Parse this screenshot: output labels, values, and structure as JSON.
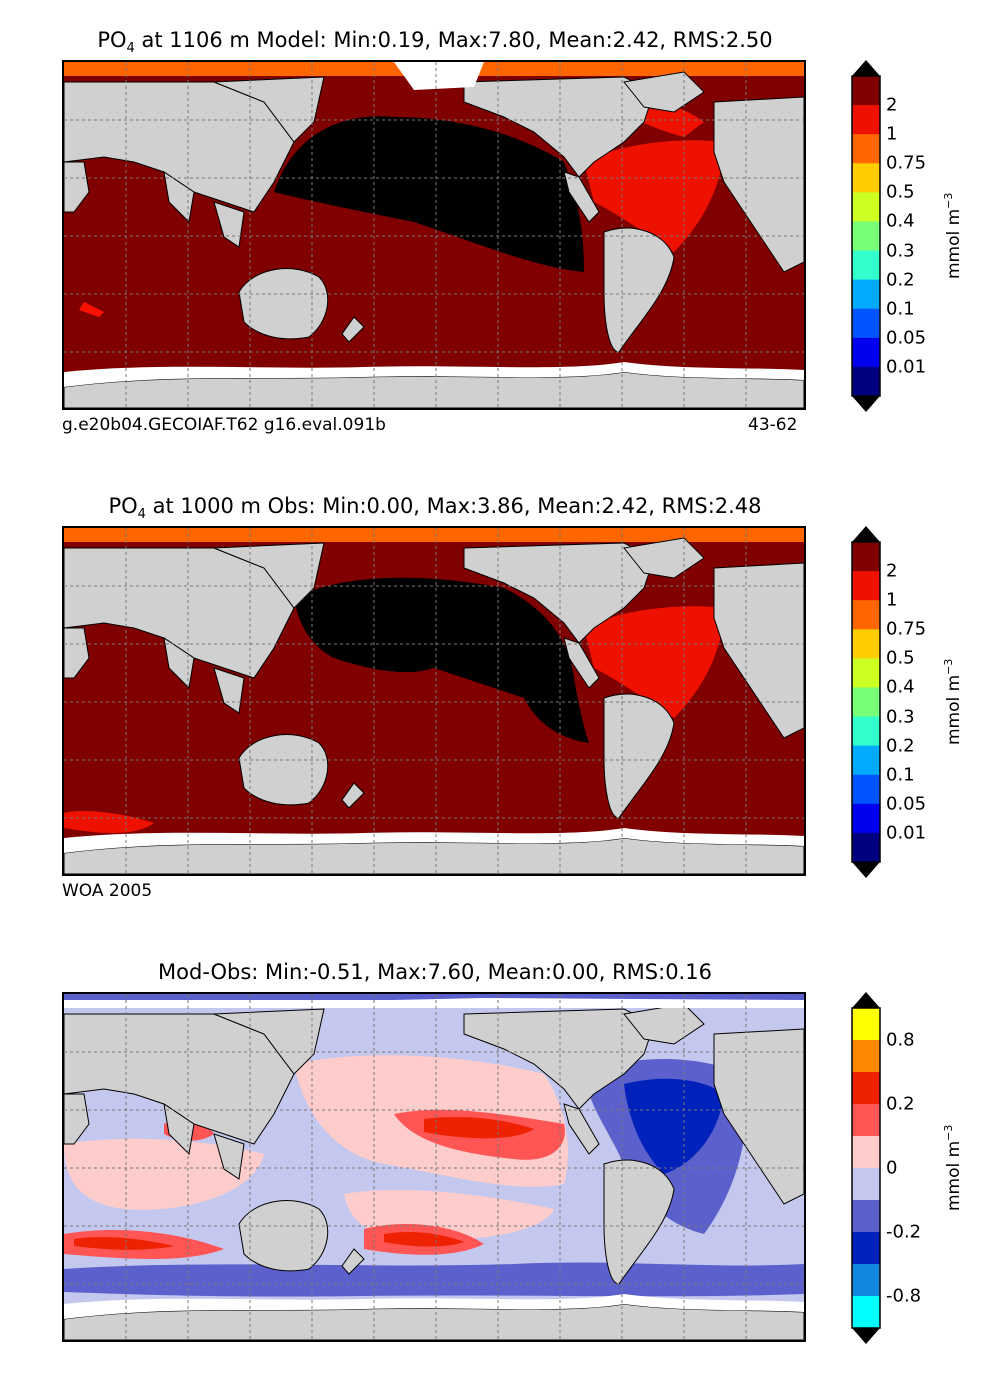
{
  "panels": [
    {
      "title_prefix": "PO",
      "title_sub": "4",
      "title_rest": " at 1106 m Model: Min:0.19, Max:7.80, Mean:2.42, RMS:2.50",
      "left_note": "g.e20b04.GECOIAF.T62 g16.eval.091b",
      "right_note": "43-62",
      "colorbar": {
        "labels": [
          "2",
          "1",
          "0.75",
          "0.5",
          "0.4",
          "0.3",
          "0.2",
          "0.1",
          "0.05",
          "0.01"
        ],
        "colors": [
          "#800000",
          "#ee1100",
          "#ff6600",
          "#ffcc00",
          "#ccff22",
          "#77ff77",
          "#33ffcc",
          "#00aaff",
          "#0055ff",
          "#0000ee",
          "#000080"
        ],
        "unit": "mmol m",
        "unit_sup": "−3"
      }
    },
    {
      "title_prefix": "PO",
      "title_sub": "4",
      "title_rest": " at 1000 m Obs: Min:0.00, Max:3.86, Mean:2.42, RMS:2.48",
      "left_note": "WOA 2005",
      "right_note": "",
      "colorbar": {
        "labels": [
          "2",
          "1",
          "0.75",
          "0.5",
          "0.4",
          "0.3",
          "0.2",
          "0.1",
          "0.05",
          "0.01"
        ],
        "colors": [
          "#800000",
          "#ee1100",
          "#ff6600",
          "#ffcc00",
          "#ccff22",
          "#77ff77",
          "#33ffcc",
          "#00aaff",
          "#0055ff",
          "#0000ee",
          "#000080"
        ],
        "unit": "mmol m",
        "unit_sup": "−3"
      }
    },
    {
      "title_prefix": "Mod-Obs: Min:-0.51, Max:7.60, Mean:0.00, RMS:0.16",
      "title_sub": "",
      "title_rest": "",
      "left_note": "",
      "right_note": "",
      "colorbar": {
        "labels": [
          "0.8",
          "",
          "0.2",
          "",
          "0",
          "",
          "-0.2",
          "",
          "-0.8"
        ],
        "colors": [
          "#ffff00",
          "#ff8800",
          "#ee2200",
          "#ff5555",
          "#ffcccc",
          "#c4c8ee",
          "#5c60cc",
          "#0022bb",
          "#1188dd",
          "#00ffff"
        ],
        "unit": "mmol m",
        "unit_sup": "−3"
      }
    }
  ],
  "chart_data": [
    {
      "type": "heatmap",
      "title": "PO4 at 1106 m Model: Min:0.19, Max:7.80, Mean:2.42, RMS:2.50",
      "stats": {
        "min": 0.19,
        "max": 7.8,
        "mean": 2.42,
        "rms": 2.5
      },
      "depth_m": 1106,
      "levels": [
        0.01,
        0.05,
        0.1,
        0.2,
        0.3,
        0.4,
        0.5,
        0.75,
        1,
        2
      ],
      "unit": "mmol m^-3",
      "notes": [
        "g.e20b04.GECOIAF.T62 g16.eval.091b",
        "43-62"
      ]
    },
    {
      "type": "heatmap",
      "title": "PO4 at 1000 m Obs: Min:0.00, Max:3.86, Mean:2.42, RMS:2.48",
      "stats": {
        "min": 0.0,
        "max": 3.86,
        "mean": 2.42,
        "rms": 2.48
      },
      "depth_m": 1000,
      "levels": [
        0.01,
        0.05,
        0.1,
        0.2,
        0.3,
        0.4,
        0.5,
        0.75,
        1,
        2
      ],
      "unit": "mmol m^-3",
      "notes": [
        "WOA 2005"
      ]
    },
    {
      "type": "heatmap",
      "title": "Mod-Obs: Min:-0.51, Max:7.60, Mean:0.00, RMS:0.16",
      "stats": {
        "min": -0.51,
        "max": 7.6,
        "mean": 0.0,
        "rms": 0.16
      },
      "levels": [
        -0.8,
        -0.2,
        0,
        0.2,
        0.8
      ],
      "unit": "mmol m^-3"
    }
  ]
}
